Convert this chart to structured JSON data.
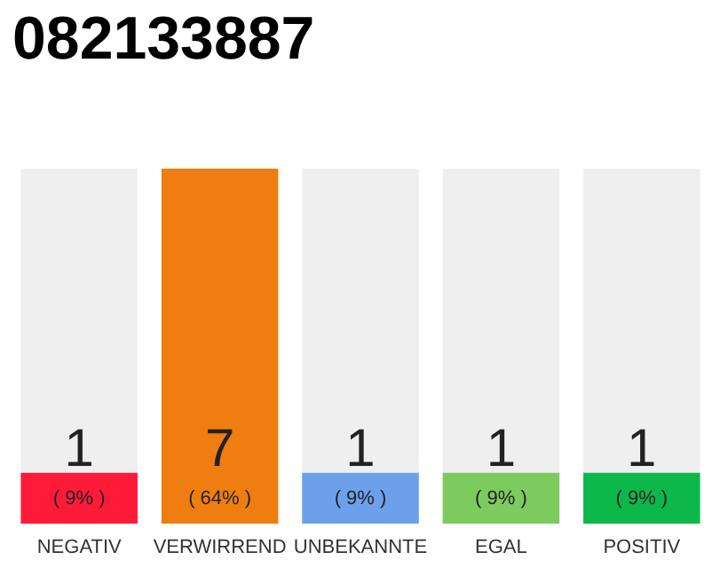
{
  "chart_data": {
    "type": "bar",
    "title": "082133887",
    "categories": [
      "NEGATIV",
      "VERWIRREND",
      "UNBEKANNTE",
      "EGAL",
      "POSITIV"
    ],
    "values": [
      1,
      7,
      1,
      1,
      1
    ],
    "colors": [
      "#ff1a3a",
      "#f07d0f",
      "#6ca0ea",
      "#7dcb5e",
      "#0db84a"
    ],
    "value_labels": [
      "1",
      "7",
      "1",
      "1",
      "1"
    ],
    "annotations": [
      "( 9% )",
      "( 64% )",
      "( 9% )",
      "( 9% )",
      "( 9% )"
    ]
  }
}
